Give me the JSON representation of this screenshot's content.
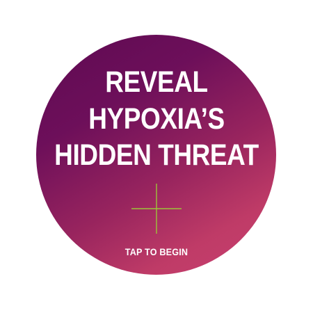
{
  "headline": {
    "line1": "REVEAL",
    "line2": "HYPOXIA’S",
    "line3": "HIDDEN THREAT"
  },
  "cta_label": "TAP TO BEGIN",
  "colors": {
    "background": "#ffffff",
    "gradient_start": "#5e0a52",
    "gradient_end": "#c84070",
    "text": "#ffffff",
    "crosshair": "#9cc43a"
  },
  "icons": {
    "crosshair": "crosshair-icon"
  }
}
